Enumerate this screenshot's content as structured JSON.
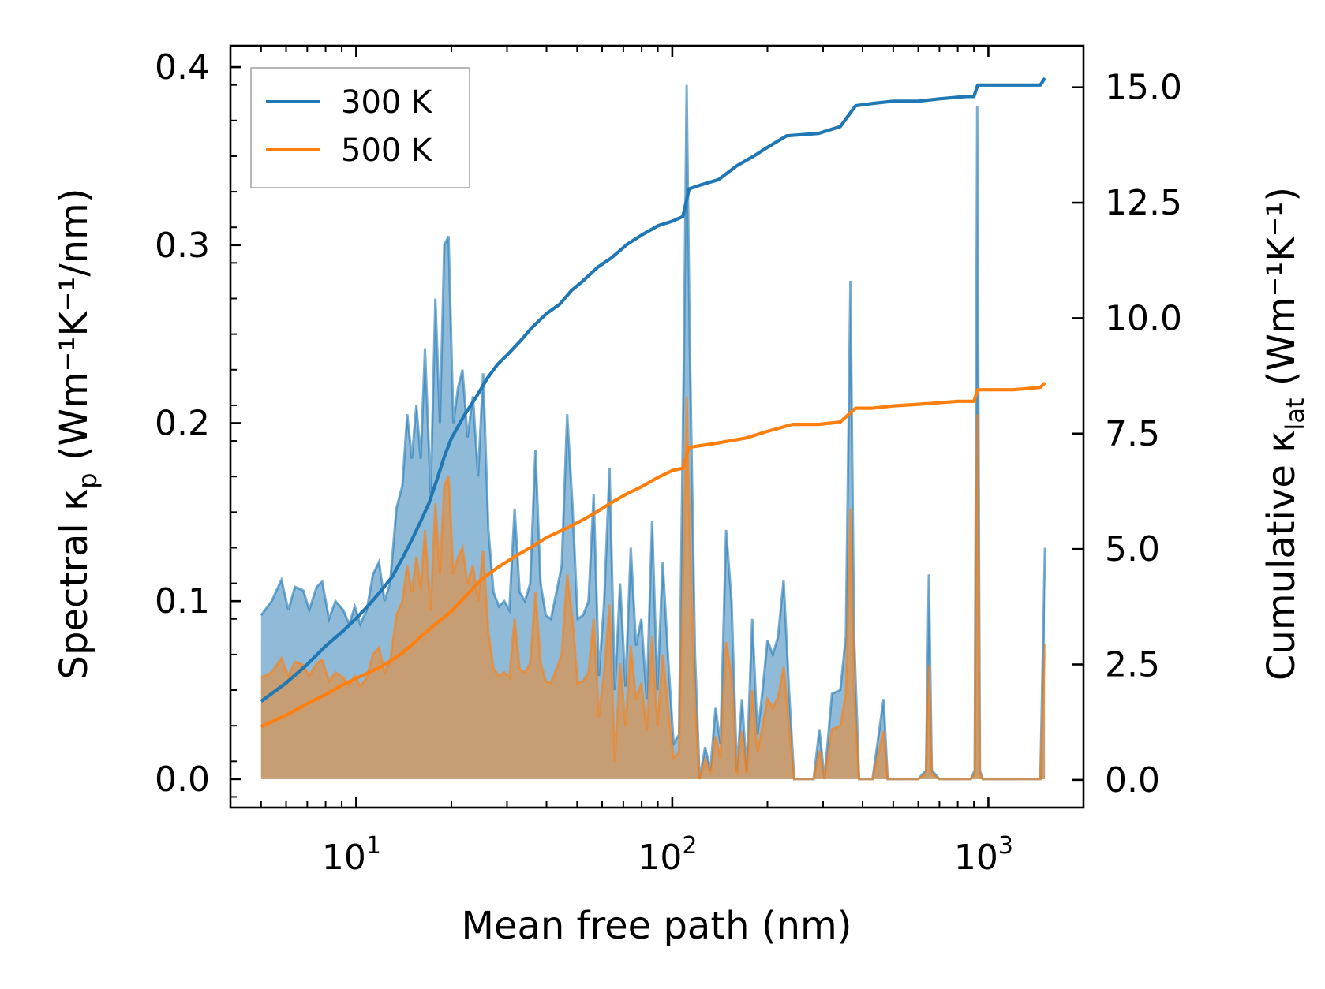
{
  "chart_data": {
    "type": "area+line",
    "xlabel": "Mean free path (nm)",
    "ylabel_left": "Spectral κ",
    "ylabel_left_sub": "p",
    "ylabel_left_unit": "(Wm⁻¹K⁻¹/nm)",
    "ylabel_right": "Cumulative κ",
    "ylabel_right_sub": "lat",
    "ylabel_right_unit": "(Wm⁻¹K⁻¹)",
    "x_scale": "log",
    "xlim": [
      4.0,
      2000
    ],
    "ylim_left": [
      -0.016,
      0.412
    ],
    "ylim_right": [
      -0.6,
      15.9
    ],
    "x_ticks": [
      {
        "value": 10,
        "base": "10",
        "exp": "1"
      },
      {
        "value": 100,
        "base": "10",
        "exp": "2"
      },
      {
        "value": 1000,
        "base": "10",
        "exp": "3"
      }
    ],
    "y_ticks_left": [
      "0.0",
      "0.1",
      "0.2",
      "0.3",
      "0.4"
    ],
    "y_ticks_right": [
      "0.0",
      "2.5",
      "5.0",
      "7.5",
      "10.0",
      "12.5",
      "15.0"
    ],
    "legend": {
      "position": "upper-left",
      "entries": [
        "300 K",
        "500 K"
      ]
    },
    "colors": {
      "s300": "#1f77b4",
      "s500": "#ff7f0e",
      "fill300": "#1f77b4",
      "fill500": "#ff7f0e"
    },
    "spectral": {
      "300 K": [
        [
          5,
          0.092
        ],
        [
          5.4,
          0.1
        ],
        [
          5.8,
          0.112
        ],
        [
          6.1,
          0.095
        ],
        [
          6.4,
          0.108
        ],
        [
          6.8,
          0.106
        ],
        [
          7.1,
          0.095
        ],
        [
          7.5,
          0.108
        ],
        [
          7.8,
          0.111
        ],
        [
          8.2,
          0.09
        ],
        [
          8.6,
          0.1
        ],
        [
          9.1,
          0.095
        ],
        [
          9.5,
          0.087
        ],
        [
          9.9,
          0.097
        ],
        [
          10.3,
          0.087
        ],
        [
          10.8,
          0.095
        ],
        [
          11.3,
          0.115
        ],
        [
          11.8,
          0.122
        ],
        [
          12.3,
          0.1
        ],
        [
          12.8,
          0.11
        ],
        [
          13.4,
          0.152
        ],
        [
          14,
          0.165
        ],
        [
          14.5,
          0.205
        ],
        [
          15,
          0.18
        ],
        [
          15.5,
          0.21
        ],
        [
          16,
          0.18
        ],
        [
          16.5,
          0.242
        ],
        [
          17.2,
          0.16
        ],
        [
          17.8,
          0.27
        ],
        [
          18.4,
          0.2
        ],
        [
          19,
          0.3
        ],
        [
          19.6,
          0.305
        ],
        [
          20.3,
          0.2
        ],
        [
          21,
          0.22
        ],
        [
          21.7,
          0.23
        ],
        [
          22.5,
          0.192
        ],
        [
          23.4,
          0.215
        ],
        [
          24.3,
          0.17
        ],
        [
          25.2,
          0.228
        ],
        [
          26.2,
          0.14
        ],
        [
          27.2,
          0.105
        ],
        [
          28.3,
          0.097
        ],
        [
          29.4,
          0.1
        ],
        [
          30.5,
          0.095
        ],
        [
          31.7,
          0.152
        ],
        [
          32.9,
          0.105
        ],
        [
          34.2,
          0.1
        ],
        [
          35.5,
          0.11
        ],
        [
          36.9,
          0.185
        ],
        [
          38.3,
          0.11
        ],
        [
          39.8,
          0.092
        ],
        [
          41.3,
          0.09
        ],
        [
          43,
          0.105
        ],
        [
          44.7,
          0.12
        ],
        [
          46.5,
          0.205
        ],
        [
          48.3,
          0.155
        ],
        [
          50.2,
          0.09
        ],
        [
          52.2,
          0.092
        ],
        [
          54.3,
          0.1
        ],
        [
          56.4,
          0.16
        ],
        [
          58.6,
          0.058
        ],
        [
          60.9,
          0.1
        ],
        [
          63.3,
          0.175
        ],
        [
          65.8,
          0.05
        ],
        [
          68.4,
          0.11
        ],
        [
          71.1,
          0.052
        ],
        [
          73.9,
          0.13
        ],
        [
          76.8,
          0.075
        ],
        [
          79.8,
          0.09
        ],
        [
          83,
          0.045
        ],
        [
          86.3,
          0.145
        ],
        [
          89.7,
          0.05
        ],
        [
          93.3,
          0.122
        ],
        [
          97,
          0.068
        ],
        [
          101,
          0.02
        ],
        [
          105,
          0.025
        ],
        [
          109,
          0.25
        ],
        [
          111,
          0.39
        ],
        [
          113.5,
          0.25
        ],
        [
          118,
          0.07
        ],
        [
          122,
          0.0
        ],
        [
          127,
          0.018
        ],
        [
          132,
          0.005
        ],
        [
          137,
          0.04
        ],
        [
          142,
          0.02
        ],
        [
          148,
          0.14
        ],
        [
          154,
          0.1
        ],
        [
          160,
          0.005
        ],
        [
          166,
          0.045
        ],
        [
          172,
          0.005
        ],
        [
          179,
          0.09
        ],
        [
          186,
          0.025
        ],
        [
          193,
          0.05
        ],
        [
          200,
          0.078
        ],
        [
          208,
          0.07
        ],
        [
          216,
          0.08
        ],
        [
          225,
          0.112
        ],
        [
          234,
          0.05
        ],
        [
          243,
          0.0
        ],
        [
          260,
          0.0
        ],
        [
          280,
          0.0
        ],
        [
          292,
          0.028
        ],
        [
          303,
          0.0
        ],
        [
          320,
          0.048
        ],
        [
          340,
          0.05
        ],
        [
          354,
          0.08
        ],
        [
          366,
          0.28
        ],
        [
          376,
          0.08
        ],
        [
          390,
          0.0
        ],
        [
          430,
          0.0
        ],
        [
          466,
          0.045
        ],
        [
          480,
          0.0
        ],
        [
          530,
          0.0
        ],
        [
          600,
          0.0
        ],
        [
          635,
          0.005
        ],
        [
          648,
          0.115
        ],
        [
          662,
          0.005
        ],
        [
          700,
          0.0
        ],
        [
          800,
          0.0
        ],
        [
          880,
          0.0
        ],
        [
          905,
          0.005
        ],
        [
          922,
          0.378
        ],
        [
          940,
          0.005
        ],
        [
          960,
          0.0
        ],
        [
          1100,
          0.0
        ],
        [
          1300,
          0.0
        ],
        [
          1460,
          0.0
        ],
        [
          1510,
          0.13
        ]
      ],
      "500 K": [
        [
          5,
          0.057
        ],
        [
          5.4,
          0.06
        ],
        [
          5.8,
          0.068
        ],
        [
          6.1,
          0.058
        ],
        [
          6.4,
          0.066
        ],
        [
          6.8,
          0.064
        ],
        [
          7.1,
          0.058
        ],
        [
          7.5,
          0.065
        ],
        [
          7.8,
          0.067
        ],
        [
          8.2,
          0.055
        ],
        [
          8.6,
          0.06
        ],
        [
          9.1,
          0.057
        ],
        [
          9.5,
          0.053
        ],
        [
          9.9,
          0.058
        ],
        [
          10.3,
          0.052
        ],
        [
          10.8,
          0.057
        ],
        [
          11.3,
          0.07
        ],
        [
          11.8,
          0.074
        ],
        [
          12.3,
          0.06
        ],
        [
          12.8,
          0.066
        ],
        [
          13.4,
          0.092
        ],
        [
          14,
          0.1
        ],
        [
          14.5,
          0.12
        ],
        [
          15,
          0.105
        ],
        [
          15.5,
          0.125
        ],
        [
          16,
          0.107
        ],
        [
          16.5,
          0.14
        ],
        [
          17.2,
          0.095
        ],
        [
          17.8,
          0.155
        ],
        [
          18.4,
          0.115
        ],
        [
          19,
          0.165
        ],
        [
          19.6,
          0.17
        ],
        [
          20.3,
          0.115
        ],
        [
          21,
          0.125
        ],
        [
          21.7,
          0.13
        ],
        [
          22.5,
          0.11
        ],
        [
          23.4,
          0.12
        ],
        [
          24.3,
          0.1
        ],
        [
          25.2,
          0.128
        ],
        [
          26.2,
          0.082
        ],
        [
          27.2,
          0.062
        ],
        [
          28.3,
          0.058
        ],
        [
          29.4,
          0.06
        ],
        [
          30.5,
          0.057
        ],
        [
          31.7,
          0.09
        ],
        [
          32.9,
          0.062
        ],
        [
          34.2,
          0.06
        ],
        [
          35.5,
          0.065
        ],
        [
          36.9,
          0.105
        ],
        [
          38.3,
          0.065
        ],
        [
          39.8,
          0.055
        ],
        [
          41.3,
          0.054
        ],
        [
          43,
          0.062
        ],
        [
          44.7,
          0.07
        ],
        [
          46.5,
          0.115
        ],
        [
          48.3,
          0.09
        ],
        [
          50.2,
          0.054
        ],
        [
          52.2,
          0.055
        ],
        [
          54.3,
          0.06
        ],
        [
          56.4,
          0.09
        ],
        [
          58.6,
          0.035
        ],
        [
          60.9,
          0.06
        ],
        [
          63.3,
          0.098
        ],
        [
          65.8,
          0.01
        ],
        [
          68.4,
          0.065
        ],
        [
          71.1,
          0.03
        ],
        [
          73.9,
          0.075
        ],
        [
          76.8,
          0.045
        ],
        [
          79.8,
          0.054
        ],
        [
          83,
          0.027
        ],
        [
          86.3,
          0.08
        ],
        [
          89.7,
          0.03
        ],
        [
          93.3,
          0.07
        ],
        [
          97,
          0.04
        ],
        [
          101,
          0.012
        ],
        [
          105,
          0.015
        ],
        [
          109,
          0.14
        ],
        [
          111,
          0.215
        ],
        [
          113.5,
          0.14
        ],
        [
          118,
          0.042
        ],
        [
          122,
          0.0
        ],
        [
          127,
          0.011
        ],
        [
          132,
          0.003
        ],
        [
          137,
          0.024
        ],
        [
          142,
          0.012
        ],
        [
          148,
          0.077
        ],
        [
          154,
          0.058
        ],
        [
          160,
          0.003
        ],
        [
          166,
          0.027
        ],
        [
          172,
          0.003
        ],
        [
          179,
          0.05
        ],
        [
          186,
          0.015
        ],
        [
          193,
          0.03
        ],
        [
          200,
          0.045
        ],
        [
          208,
          0.04
        ],
        [
          216,
          0.046
        ],
        [
          225,
          0.063
        ],
        [
          234,
          0.03
        ],
        [
          243,
          0.0
        ],
        [
          260,
          0.0
        ],
        [
          280,
          0.0
        ],
        [
          292,
          0.016
        ],
        [
          303,
          0.0
        ],
        [
          320,
          0.028
        ],
        [
          340,
          0.03
        ],
        [
          354,
          0.048
        ],
        [
          366,
          0.152
        ],
        [
          376,
          0.048
        ],
        [
          390,
          0.0
        ],
        [
          430,
          0.0
        ],
        [
          466,
          0.027
        ],
        [
          480,
          0.0
        ],
        [
          530,
          0.0
        ],
        [
          600,
          0.0
        ],
        [
          635,
          0.003
        ],
        [
          648,
          0.064
        ],
        [
          662,
          0.003
        ],
        [
          700,
          0.0
        ],
        [
          800,
          0.0
        ],
        [
          880,
          0.0
        ],
        [
          905,
          0.003
        ],
        [
          922,
          0.205
        ],
        [
          940,
          0.003
        ],
        [
          960,
          0.0
        ],
        [
          1100,
          0.0
        ],
        [
          1300,
          0.0
        ],
        [
          1460,
          0.0
        ],
        [
          1510,
          0.076
        ]
      ]
    },
    "cumulative": {
      "300 K": [
        [
          5,
          1.7
        ],
        [
          6,
          2.1
        ],
        [
          7,
          2.5
        ],
        [
          8,
          2.9
        ],
        [
          9,
          3.2
        ],
        [
          10,
          3.5
        ],
        [
          11,
          3.8
        ],
        [
          12,
          4.1
        ],
        [
          13,
          4.4
        ],
        [
          14,
          4.8
        ],
        [
          15,
          5.2
        ],
        [
          16,
          5.6
        ],
        [
          17,
          6.0
        ],
        [
          18,
          6.5
        ],
        [
          19,
          7.0
        ],
        [
          20,
          7.4
        ],
        [
          22,
          7.9
        ],
        [
          24,
          8.3
        ],
        [
          26,
          8.7
        ],
        [
          28,
          9.0
        ],
        [
          30,
          9.2
        ],
        [
          33,
          9.5
        ],
        [
          36,
          9.8
        ],
        [
          40,
          10.1
        ],
        [
          44,
          10.3
        ],
        [
          48,
          10.6
        ],
        [
          52,
          10.8
        ],
        [
          58,
          11.1
        ],
        [
          64,
          11.3
        ],
        [
          72,
          11.6
        ],
        [
          80,
          11.8
        ],
        [
          90,
          12.0
        ],
        [
          100,
          12.1
        ],
        [
          108,
          12.2
        ],
        [
          113,
          12.8
        ],
        [
          125,
          12.9
        ],
        [
          140,
          13.0
        ],
        [
          160,
          13.3
        ],
        [
          180,
          13.5
        ],
        [
          200,
          13.7
        ],
        [
          230,
          13.95
        ],
        [
          290,
          14.0
        ],
        [
          340,
          14.15
        ],
        [
          380,
          14.6
        ],
        [
          430,
          14.65
        ],
        [
          500,
          14.7
        ],
        [
          600,
          14.7
        ],
        [
          700,
          14.75
        ],
        [
          850,
          14.8
        ],
        [
          900,
          14.8
        ],
        [
          925,
          15.05
        ],
        [
          1000,
          15.05
        ],
        [
          1200,
          15.05
        ],
        [
          1460,
          15.05
        ],
        [
          1510,
          15.2
        ]
      ],
      "500 K": [
        [
          5,
          1.15
        ],
        [
          6,
          1.4
        ],
        [
          7,
          1.65
        ],
        [
          8,
          1.85
        ],
        [
          9,
          2.05
        ],
        [
          10,
          2.2
        ],
        [
          12,
          2.45
        ],
        [
          13,
          2.6
        ],
        [
          14,
          2.75
        ],
        [
          16,
          3.1
        ],
        [
          18,
          3.4
        ],
        [
          20,
          3.65
        ],
        [
          22,
          3.95
        ],
        [
          25,
          4.35
        ],
        [
          28,
          4.6
        ],
        [
          32,
          4.85
        ],
        [
          36,
          5.05
        ],
        [
          40,
          5.25
        ],
        [
          48,
          5.5
        ],
        [
          56,
          5.75
        ],
        [
          64,
          6.0
        ],
        [
          72,
          6.2
        ],
        [
          80,
          6.35
        ],
        [
          90,
          6.55
        ],
        [
          100,
          6.7
        ],
        [
          108,
          6.75
        ],
        [
          113,
          7.2
        ],
        [
          140,
          7.3
        ],
        [
          170,
          7.4
        ],
        [
          200,
          7.55
        ],
        [
          240,
          7.7
        ],
        [
          290,
          7.7
        ],
        [
          340,
          7.75
        ],
        [
          380,
          8.05
        ],
        [
          430,
          8.05
        ],
        [
          500,
          8.1
        ],
        [
          650,
          8.15
        ],
        [
          800,
          8.2
        ],
        [
          900,
          8.2
        ],
        [
          925,
          8.45
        ],
        [
          1000,
          8.45
        ],
        [
          1200,
          8.45
        ],
        [
          1460,
          8.5
        ],
        [
          1510,
          8.6
        ]
      ]
    }
  }
}
